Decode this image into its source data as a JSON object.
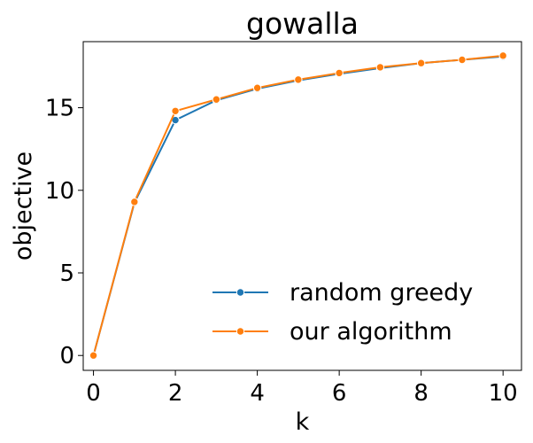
{
  "chart_data": {
    "type": "line",
    "title": "gowalla",
    "xlabel": "k",
    "ylabel": "objective",
    "xlim": [
      -0.25,
      10.45
    ],
    "ylim": [
      -0.9,
      19.0
    ],
    "xticks": [
      0,
      2,
      4,
      6,
      8,
      10
    ],
    "yticks": [
      0,
      5,
      10,
      15
    ],
    "grid": false,
    "legend_position": "lower-right",
    "x": [
      0,
      1,
      2,
      3,
      4,
      5,
      6,
      7,
      8,
      9,
      10
    ],
    "series": [
      {
        "name": "random greedy",
        "color": "#1f77b4",
        "values": [
          0.0,
          9.25,
          14.25,
          15.45,
          16.15,
          16.65,
          17.05,
          17.4,
          17.7,
          17.9,
          18.1
        ]
      },
      {
        "name": "our algorithm",
        "color": "#ff7f0e",
        "values": [
          0.0,
          9.3,
          14.8,
          15.5,
          16.2,
          16.7,
          17.1,
          17.45,
          17.7,
          17.9,
          18.15
        ]
      }
    ]
  }
}
